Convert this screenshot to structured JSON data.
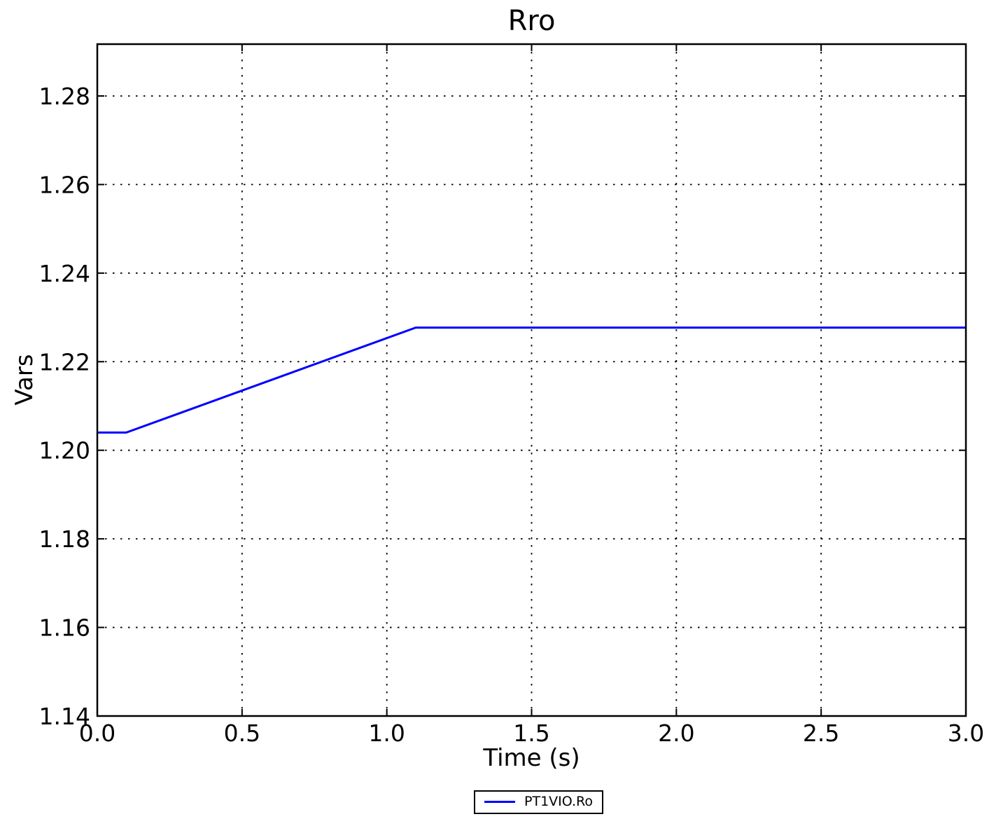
{
  "figure": {
    "title": "Rro",
    "xlabel": "Time (s)",
    "ylabel": "Vars"
  },
  "legend": {
    "entries": [
      {
        "label": "PT1VIO.Ro",
        "color": "#0000ff"
      }
    ],
    "position": "below plot, centered"
  },
  "colors": {
    "line": "#0000ff",
    "frame": "#000000",
    "grid": "#000000",
    "background": "#ffffff",
    "text": "#000000"
  },
  "chart_data": {
    "type": "line",
    "title": "Rro",
    "xlabel": "Time (s)",
    "ylabel": "Vars",
    "xlim": [
      0.0,
      3.0
    ],
    "ylim": [
      1.14,
      1.2917
    ],
    "xticks": [
      0.0,
      0.5,
      1.0,
      1.5,
      2.0,
      2.5,
      3.0
    ],
    "xtick_labels": [
      "0.0",
      "0.5",
      "1.0",
      "1.5",
      "2.0",
      "2.5",
      "3.0"
    ],
    "yticks": [
      1.14,
      1.16,
      1.18,
      1.2,
      1.22,
      1.24,
      1.26,
      1.28
    ],
    "ytick_labels": [
      "1.14",
      "1.16",
      "1.18",
      "1.20",
      "1.22",
      "1.24",
      "1.26",
      "1.28"
    ],
    "grid": true,
    "grid_style": "dotted",
    "legend_position": "lower center outside axes",
    "series": [
      {
        "name": "PT1VIO.Ro",
        "color": "#0000ff",
        "x": [
          0.0,
          0.1,
          1.1,
          3.0
        ],
        "y": [
          1.204,
          1.204,
          1.2277,
          1.2277
        ]
      }
    ]
  }
}
